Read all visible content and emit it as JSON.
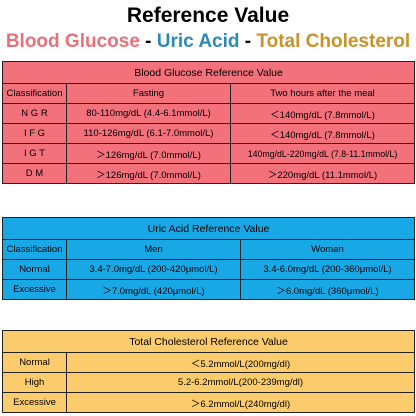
{
  "header": {
    "title": "Reference Value",
    "sub_glucose": "Blood Glucose",
    "sub_dash": "-",
    "sub_uric": "Uric Acid",
    "sub_chol": "Total Cholesterol"
  },
  "colors": {
    "glucose": "#f2717b",
    "uric": "#18a8e6",
    "cholesterol": "#fccb6b"
  },
  "glucose": {
    "title": "Blood Glucose Reference Value",
    "columns": [
      "Classification",
      "Fasting",
      "Two hours after the meal"
    ],
    "rows": [
      [
        "N G R",
        "80-110mg/dL (4.4-6.1mmol/L)",
        "＜140mg/dL (7.8mmol/L)"
      ],
      [
        "I F G",
        "110-126mg/dL (6.1-7.0mmol/L)",
        "＜140mg/dL (7.8mmol/L)"
      ],
      [
        "I G T",
        "＞126mg/dL (7.0mmol/L)",
        "140mg/dL-220mg/dL (7.8-11.1mmol/L)"
      ],
      [
        "D M",
        "＞126mg/dL (7.0mmol/L)",
        "＞220mg/dL (11.1mmol/L)"
      ]
    ]
  },
  "uric": {
    "title": "Uric Acid Reference Value",
    "columns": [
      "Classification",
      "Men",
      "Woman"
    ],
    "rows": [
      [
        "Normal",
        "3.4-7.0mg/dL (200-420μmol/L)",
        "3.4-6.0mg/dL (200-360μmol/L)"
      ],
      [
        "Excessive",
        "＞7.0mg/dL (420μmol/L)",
        "＞6.0mg/dL (360μmol/L)"
      ]
    ]
  },
  "cholesterol": {
    "title": "Total Cholesterol Reference Value",
    "rows": [
      [
        "Normal",
        "＜5.2mmol/L(200mg/dl)"
      ],
      [
        "High",
        "5.2-6.2mmol/L(200-239mg/dl)"
      ],
      [
        "Excessive",
        "＞6.2mmol/L(240mg/dl)"
      ]
    ]
  }
}
